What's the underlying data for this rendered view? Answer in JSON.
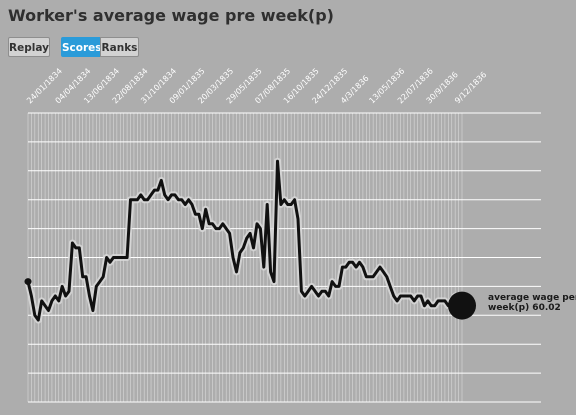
{
  "header": {
    "title": "Worker's average wage pre week(p)"
  },
  "controls": {
    "replay_label": "Replay",
    "scores_label": "Scores",
    "ranks_label": "Ranks",
    "active": "Scores"
  },
  "end_label": {
    "line1": "average wage per",
    "line2": "week(p) 60.02"
  },
  "colors": {
    "background": "#adadad",
    "line": "#111111",
    "line_halo": "#d9d9d9",
    "gridline": "#ffffff",
    "accent": "#2a9bd9"
  },
  "chart_data": {
    "type": "line",
    "title": "Worker's average wage pre week(p)",
    "xlabel": "",
    "ylabel": "",
    "x_tick_labels": [
      "24/01/1834",
      "04/04/1834",
      "13/06/1834",
      "22/08/1834",
      "31/10/1834",
      "09/01/1835",
      "20/03/1835",
      "29/05/1835",
      "07/08/1835",
      "16/10/1835",
      "24/12/1835",
      "4/3/1836",
      "13/05/1836",
      "22/07/1836",
      "30/9/1836",
      "9/12/1836"
    ],
    "ylim": [
      40,
      100
    ],
    "grid": true,
    "series": [
      {
        "name": "",
        "values": [
          65,
          62,
          58,
          57,
          61,
          60,
          59,
          61,
          62,
          61,
          64,
          62,
          63,
          73,
          72,
          72,
          66,
          66,
          62,
          59,
          64,
          65,
          66,
          70,
          69,
          70,
          70,
          70,
          70,
          70,
          82,
          82,
          82,
          83,
          82,
          82,
          83,
          84,
          84,
          86,
          83,
          82,
          83,
          83,
          82,
          82,
          81,
          82,
          81,
          79,
          79,
          76,
          80,
          77,
          77,
          76,
          76,
          77,
          76,
          75,
          70,
          67,
          71,
          72,
          74,
          75,
          72,
          77,
          76,
          68,
          81,
          67,
          65,
          90,
          81,
          82,
          81,
          81,
          82,
          78,
          63,
          62,
          63,
          64,
          63,
          62,
          63,
          63,
          62,
          65,
          64,
          64,
          68,
          68,
          69,
          69,
          68,
          69,
          68,
          66,
          66,
          66,
          67,
          68,
          67,
          66,
          64,
          62,
          61,
          62,
          62,
          62,
          62,
          61,
          62,
          62,
          60,
          61,
          60,
          60,
          61,
          61,
          61,
          60,
          61,
          62,
          62,
          60.02
        ]
      }
    ],
    "end_value": 60.02
  }
}
